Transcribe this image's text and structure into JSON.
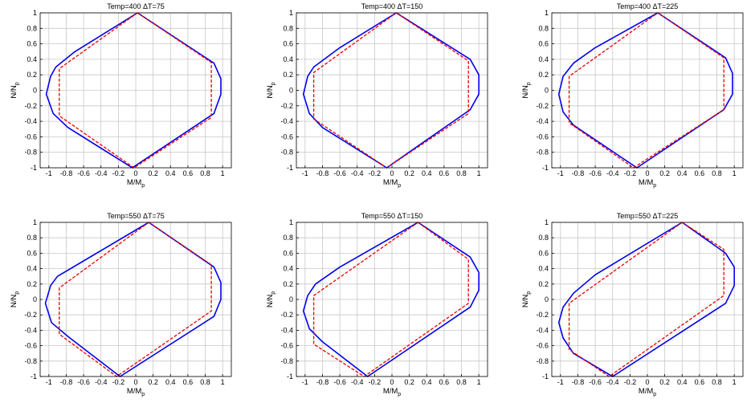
{
  "colors": {
    "series_outer": "#0000ee",
    "series_inner": "#ee0000",
    "grid": "#c8c8c8",
    "axes": "#000000"
  },
  "chart_data": [
    {
      "type": "line",
      "title": "Temp=400 ΔT=75",
      "xlabel": "M/M",
      "xlabel_sub": "p",
      "ylabel": "N/N",
      "ylabel_sub": "p",
      "xlim": [
        -1.1,
        1.1
      ],
      "ylim": [
        -1,
        1
      ],
      "xticks": [
        "-1",
        "-0.8",
        "-0.6",
        "-0.4",
        "-0.2",
        "0",
        "0.2",
        "0.4",
        "0.6",
        "0.8",
        "1"
      ],
      "yticks": [
        "1",
        "0.8",
        "0.6",
        "0.4",
        "0.2",
        "0",
        "-0.2",
        "-0.4",
        "-0.6",
        "-0.8",
        "-1"
      ],
      "grid": true,
      "series": [
        {
          "style": "solid",
          "color": "#0000ee",
          "points": [
            [
              0.02,
              1
            ],
            [
              0.9,
              0.35
            ],
            [
              0.98,
              0.15
            ],
            [
              0.98,
              -0.05
            ],
            [
              0.9,
              -0.3
            ],
            [
              -0.04,
              -1
            ],
            [
              -0.78,
              -0.48
            ],
            [
              -0.95,
              -0.3
            ],
            [
              -1.03,
              -0.05
            ],
            [
              -0.98,
              0.18
            ],
            [
              -0.92,
              0.3
            ],
            [
              -0.7,
              0.5
            ],
            [
              0.02,
              1
            ]
          ]
        },
        {
          "style": "dashed",
          "color": "#ee0000",
          "points": [
            [
              0.02,
              1
            ],
            [
              0.87,
              0.36
            ],
            [
              0.87,
              -0.35
            ],
            [
              -0.02,
              -1
            ],
            [
              -0.88,
              -0.33
            ],
            [
              -0.88,
              0.28
            ],
            [
              0.02,
              1
            ]
          ]
        }
      ]
    },
    {
      "type": "line",
      "title": "Temp=400 ΔT=150",
      "xlabel": "M/M",
      "xlabel_sub": "p",
      "ylabel": "N/N",
      "ylabel_sub": "p",
      "xlim": [
        -1.1,
        1.1
      ],
      "ylim": [
        -1,
        1
      ],
      "xticks": [
        "-1",
        "-0.8",
        "-0.6",
        "-0.4",
        "-0.2",
        "0",
        "0.2",
        "0.4",
        "0.6",
        "0.8",
        "1"
      ],
      "yticks": [
        "1",
        "0.8",
        "0.6",
        "0.4",
        "0.2",
        "0",
        "-0.2",
        "-0.4",
        "-0.6",
        "-0.8",
        "-1"
      ],
      "grid": true,
      "series": [
        {
          "style": "solid",
          "color": "#0000ee",
          "points": [
            [
              0.05,
              1
            ],
            [
              0.9,
              0.4
            ],
            [
              1,
              0.2
            ],
            [
              1,
              -0.05
            ],
            [
              0.9,
              -0.25
            ],
            [
              -0.06,
              -1
            ],
            [
              -0.8,
              -0.48
            ],
            [
              -0.95,
              -0.3
            ],
            [
              -1.02,
              -0.05
            ],
            [
              -0.97,
              0.18
            ],
            [
              -0.9,
              0.3
            ],
            [
              -0.6,
              0.55
            ],
            [
              0.05,
              1
            ]
          ]
        },
        {
          "style": "dashed",
          "color": "#ee0000",
          "points": [
            [
              0.05,
              1
            ],
            [
              0.88,
              0.38
            ],
            [
              0.88,
              -0.3
            ],
            [
              -0.06,
              -1
            ],
            [
              -0.9,
              -0.37
            ],
            [
              -0.9,
              0.23
            ],
            [
              0.05,
              1
            ]
          ]
        }
      ]
    },
    {
      "type": "line",
      "title": "Temp=400 ΔT=225",
      "xlabel": "M/M",
      "xlabel_sub": "p",
      "ylabel": "N/N",
      "ylabel_sub": "p",
      "xlim": [
        -1.1,
        1.1
      ],
      "ylim": [
        -1,
        1
      ],
      "xticks": [
        "-1",
        "-0.8",
        "-0.6",
        "-0.4",
        "-0.2",
        "0",
        "0.2",
        "0.4",
        "0.6",
        "0.8",
        "1"
      ],
      "yticks": [
        "1",
        "0.8",
        "0.6",
        "0.4",
        "0.2",
        "0",
        "-0.2",
        "-0.4",
        "-0.6",
        "-0.8",
        "-1"
      ],
      "grid": true,
      "series": [
        {
          "style": "solid",
          "color": "#0000ee",
          "points": [
            [
              0.12,
              1
            ],
            [
              0.9,
              0.42
            ],
            [
              0.98,
              0.22
            ],
            [
              0.98,
              -0.05
            ],
            [
              0.88,
              -0.25
            ],
            [
              -0.12,
              -1
            ],
            [
              -0.85,
              -0.45
            ],
            [
              -0.97,
              -0.28
            ],
            [
              -1.02,
              -0.05
            ],
            [
              -0.97,
              0.18
            ],
            [
              -0.85,
              0.35
            ],
            [
              -0.6,
              0.55
            ],
            [
              0.12,
              1
            ]
          ]
        },
        {
          "style": "dashed",
          "color": "#ee0000",
          "points": [
            [
              0.12,
              1
            ],
            [
              0.88,
              0.42
            ],
            [
              0.88,
              -0.25
            ],
            [
              -0.16,
              -1
            ],
            [
              -0.9,
              -0.42
            ],
            [
              -0.9,
              0.18
            ],
            [
              0.12,
              1
            ]
          ]
        }
      ]
    },
    {
      "type": "line",
      "title": "Temp=550 ΔT=75",
      "xlabel": "M/M",
      "xlabel_sub": "p",
      "ylabel": "N/N",
      "ylabel_sub": "p",
      "xlim": [
        -1.1,
        1.1
      ],
      "ylim": [
        -1,
        1
      ],
      "xticks": [
        "-1",
        "-0.8",
        "-0.6",
        "-0.4",
        "-0.2",
        "0",
        "0.2",
        "0.4",
        "0.6",
        "0.8",
        "1"
      ],
      "yticks": [
        "1",
        "0.8",
        "0.6",
        "0.4",
        "0.2",
        "0",
        "-0.2",
        "-0.4",
        "-0.6",
        "-0.8",
        "-1"
      ],
      "grid": true,
      "series": [
        {
          "style": "solid",
          "color": "#0000ee",
          "points": [
            [
              0.15,
              1
            ],
            [
              0.9,
              0.42
            ],
            [
              0.98,
              0.22
            ],
            [
              0.98,
              0
            ],
            [
              0.9,
              -0.22
            ],
            [
              -0.18,
              -1
            ],
            [
              -0.78,
              -0.48
            ],
            [
              -0.97,
              -0.3
            ],
            [
              -1.04,
              -0.05
            ],
            [
              -0.98,
              0.18
            ],
            [
              -0.9,
              0.3
            ],
            [
              -0.6,
              0.5
            ],
            [
              0.15,
              1
            ]
          ]
        },
        {
          "style": "dashed",
          "color": "#ee0000",
          "points": [
            [
              0.15,
              1
            ],
            [
              0.87,
              0.45
            ],
            [
              0.87,
              -0.15
            ],
            [
              -0.22,
              -1
            ],
            [
              -0.88,
              -0.45
            ],
            [
              -0.88,
              0.15
            ],
            [
              0.15,
              1
            ]
          ]
        }
      ]
    },
    {
      "type": "line",
      "title": "Temp=550 ΔT=150",
      "xlabel": "M/M",
      "xlabel_sub": "p",
      "ylabel": "N/N",
      "ylabel_sub": "p",
      "xlim": [
        -1.1,
        1.1
      ],
      "ylim": [
        -1,
        1
      ],
      "xticks": [
        "-1",
        "-0.8",
        "-0.6",
        "-0.4",
        "-0.2",
        "0",
        "0.2",
        "0.4",
        "0.6",
        "0.8",
        "1"
      ],
      "yticks": [
        "1",
        "0.8",
        "0.6",
        "0.4",
        "0.2",
        "0",
        "-0.2",
        "-0.4",
        "-0.6",
        "-0.8",
        "-1"
      ],
      "grid": true,
      "series": [
        {
          "style": "solid",
          "color": "#0000ee",
          "points": [
            [
              0.3,
              1
            ],
            [
              0.9,
              0.55
            ],
            [
              1,
              0.35
            ],
            [
              1,
              0.12
            ],
            [
              0.9,
              -0.1
            ],
            [
              -0.28,
              -1
            ],
            [
              -0.8,
              -0.55
            ],
            [
              -0.95,
              -0.38
            ],
            [
              -1.02,
              -0.15
            ],
            [
              -0.97,
              0.05
            ],
            [
              -0.88,
              0.2
            ],
            [
              -0.6,
              0.42
            ],
            [
              0.3,
              1
            ]
          ]
        },
        {
          "style": "dashed",
          "color": "#ee0000",
          "points": [
            [
              0.3,
              1
            ],
            [
              0.88,
              0.52
            ],
            [
              0.88,
              -0.05
            ],
            [
              -0.32,
              -1
            ],
            [
              -0.9,
              -0.58
            ],
            [
              -0.9,
              0.05
            ],
            [
              0.3,
              1
            ]
          ]
        }
      ]
    },
    {
      "type": "line",
      "title": "Temp=550 ΔT=225",
      "xlabel": "M/M",
      "xlabel_sub": "p",
      "ylabel": "N/N",
      "ylabel_sub": "p",
      "xlim": [
        -1.1,
        1.1
      ],
      "ylim": [
        -1,
        1
      ],
      "xticks": [
        "-1",
        "-0.8",
        "-0.6",
        "-0.4",
        "-0.2",
        "0",
        "0.2",
        "0.4",
        "0.6",
        "0.8",
        "1"
      ],
      "yticks": [
        "1",
        "0.8",
        "0.6",
        "0.4",
        "0.2",
        "0",
        "-0.2",
        "-0.4",
        "-0.6",
        "-0.8",
        "-1"
      ],
      "grid": true,
      "series": [
        {
          "style": "solid",
          "color": "#0000ee",
          "points": [
            [
              0.4,
              1
            ],
            [
              0.9,
              0.6
            ],
            [
              1,
              0.42
            ],
            [
              1,
              0.18
            ],
            [
              0.9,
              -0.05
            ],
            [
              -0.4,
              -1
            ],
            [
              -0.85,
              -0.7
            ],
            [
              -0.97,
              -0.5
            ],
            [
              -1.02,
              -0.3
            ],
            [
              -0.97,
              -0.1
            ],
            [
              -0.85,
              0.08
            ],
            [
              -0.6,
              0.32
            ],
            [
              0.4,
              1
            ]
          ]
        },
        {
          "style": "dashed",
          "color": "#ee0000",
          "points": [
            [
              0.4,
              1
            ],
            [
              0.88,
              0.65
            ],
            [
              0.88,
              0.05
            ],
            [
              -0.44,
              -1
            ],
            [
              -0.9,
              -0.65
            ],
            [
              -0.9,
              -0.05
            ],
            [
              0.4,
              1
            ]
          ]
        }
      ]
    }
  ]
}
